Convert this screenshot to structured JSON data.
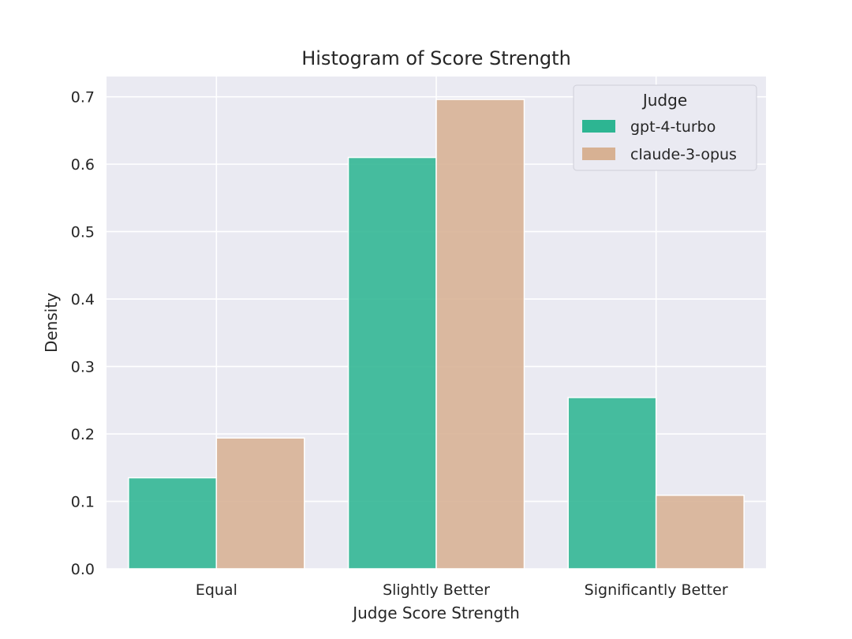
{
  "chart_data": {
    "type": "bar",
    "title": "Histogram of Score Strength",
    "xlabel": "Judge Score Strength",
    "ylabel": "Density",
    "categories": [
      "Equal",
      "Slightly Better",
      "Significantly Better"
    ],
    "series": [
      {
        "name": "gpt-4-turbo",
        "values": [
          0.135,
          0.61,
          0.254
        ],
        "color": "#2db592"
      },
      {
        "name": "claude-3-opus",
        "values": [
          0.194,
          0.696,
          0.109
        ],
        "color": "#d7b193"
      }
    ],
    "ylim": [
      0,
      0.73
    ],
    "yticks": [
      "0.0",
      "0.1",
      "0.2",
      "0.3",
      "0.4",
      "0.5",
      "0.6",
      "0.7"
    ],
    "legend": {
      "title": "Judge",
      "position": "top-right"
    },
    "grid": true,
    "colors": {
      "plot_background": "#eaeaf2",
      "grid": "#ffffff",
      "bar_edge": "#ffffff"
    }
  }
}
